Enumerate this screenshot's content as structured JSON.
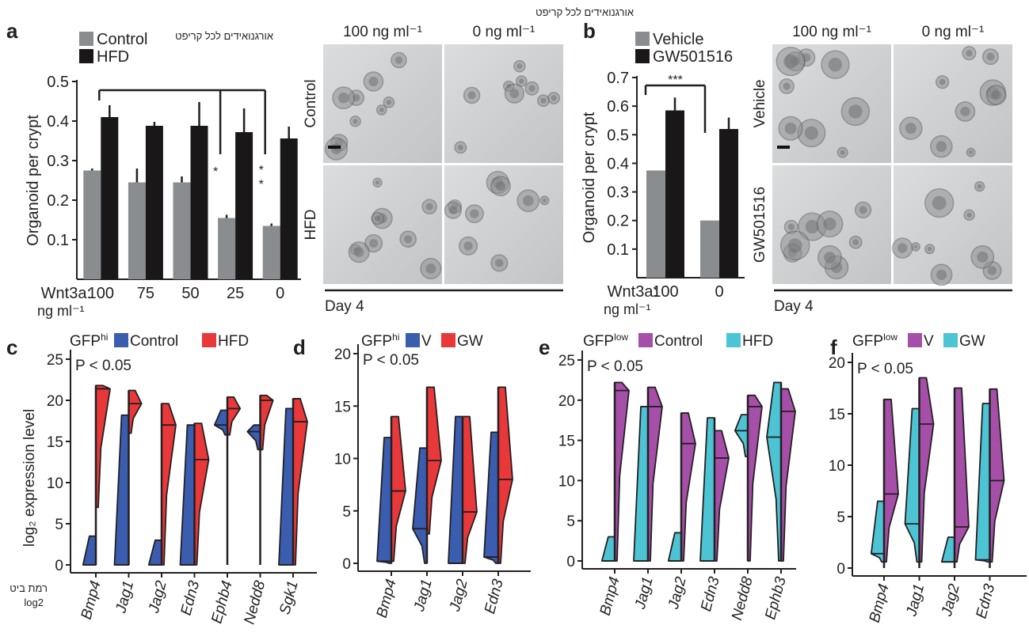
{
  "figure": {
    "annotation_hebrew_top_a": "אורגנואידים לכל קריפט",
    "annotation_hebrew_top_b": "אורגנואידים לכל קריפט",
    "annotation_hebrew_c_line1": "רמת ביט",
    "annotation_hebrew_c_line2": "log2"
  },
  "panels": {
    "a": {
      "letter": "a"
    },
    "b": {
      "letter": "b"
    },
    "c": {
      "letter": "c"
    },
    "d": {
      "letter": "d"
    },
    "e": {
      "letter": "e"
    },
    "f": {
      "letter": "f"
    }
  },
  "micrographs": {
    "a": {
      "col_labels": [
        "100 ng ml⁻¹",
        "0 ng ml⁻¹"
      ],
      "row_labels": [
        "Control",
        "HFD"
      ],
      "footer": "Day 4"
    },
    "b": {
      "col_labels": [
        "100 ng ml⁻¹",
        "0 ng ml⁻¹"
      ],
      "row_labels": [
        "Vehicle",
        "GW501516"
      ],
      "footer": "Day 4"
    }
  },
  "colors": {
    "control_gray": "#8a8d90",
    "hfd_black": "#1a1718",
    "blue": "#3a5db0",
    "red": "#e8383a",
    "purple": "#a64fa8",
    "cyan": "#4cc4d4"
  },
  "chart_data": [
    {
      "id": "a",
      "type": "bar",
      "ylabel": "Organoid per crypt",
      "xlabel_prefix": "Wnt3a:",
      "xlabel_unit": "ng ml⁻¹",
      "categories": [
        "100",
        "75",
        "50",
        "25",
        "0"
      ],
      "ylim": [
        0,
        0.5
      ],
      "yticks": [
        "0.1",
        "0.2",
        "0.3",
        "0.4",
        "0.5"
      ],
      "legend": [
        "Control",
        "HFD"
      ],
      "series": [
        {
          "name": "Control",
          "values": [
            0.275,
            0.245,
            0.245,
            0.155,
            0.135
          ],
          "errors": [
            0.005,
            0.035,
            0.015,
            0.008,
            0.006
          ]
        },
        {
          "name": "HFD",
          "values": [
            0.41,
            0.388,
            0.388,
            0.372,
            0.356
          ],
          "errors": [
            0.03,
            0.01,
            0.06,
            0.06,
            0.03
          ]
        }
      ],
      "significance": [
        {
          "from": "100",
          "to": "25",
          "label": "*"
        },
        {
          "from": "100",
          "to": "0",
          "label": "**"
        }
      ]
    },
    {
      "id": "b",
      "type": "bar",
      "ylabel": "Organoid per crypt",
      "xlabel_prefix": "Wnt3a:",
      "xlabel_unit": "ng ml⁻¹",
      "categories": [
        "100",
        "0"
      ],
      "ylim": [
        0,
        0.7
      ],
      "yticks": [
        "0.1",
        "0.2",
        "0.3",
        "0.4",
        "0.5",
        "0.6",
        "0.7"
      ],
      "legend": [
        "Vehicle",
        "GW501516"
      ],
      "series": [
        {
          "name": "Vehicle",
          "values": [
            0.375,
            0.2
          ],
          "errors": [
            0,
            0
          ]
        },
        {
          "name": "GW501516",
          "values": [
            0.585,
            0.52
          ],
          "errors": [
            0.045,
            0.04
          ]
        }
      ],
      "significance": [
        {
          "from": "100",
          "to": "0",
          "label": "***"
        }
      ]
    },
    {
      "id": "c",
      "type": "violin",
      "group_label": "GFP",
      "group_sup": "hi",
      "ylabel": "log₂ expression level",
      "pvalue": "P < 0.05",
      "ylim": [
        0,
        25
      ],
      "yticks": [
        "0",
        "5",
        "10",
        "15",
        "20",
        "25"
      ],
      "legend": [
        "Control",
        "HFD"
      ],
      "categories": [
        "Bmp4",
        "Jag1",
        "Jag2",
        "Edn3",
        "Ephb4",
        "Nedd8",
        "Sgk1"
      ],
      "series": [
        {
          "name": "Control",
          "min": [
            0,
            0,
            0,
            0,
            15.8,
            14,
            0
          ],
          "max": [
            3.5,
            18.2,
            3,
            17,
            18.8,
            17,
            19
          ],
          "median": [
            0,
            0,
            0,
            0,
            17,
            16.2,
            0
          ]
        },
        {
          "name": "HFD",
          "min": [
            7,
            16,
            0,
            0,
            15.8,
            14,
            0
          ],
          "max": [
            21.8,
            21.2,
            19.6,
            17.2,
            20.4,
            20.6,
            20.2
          ],
          "median": [
            21.4,
            19.6,
            17,
            12.8,
            19,
            20,
            17.4
          ]
        }
      ]
    },
    {
      "id": "d",
      "type": "violin",
      "group_label": "GFP",
      "group_sup": "hi",
      "pvalue": "P < 0.05",
      "ylim": [
        0,
        20
      ],
      "yticks": [
        "0",
        "5",
        "10",
        "15",
        "20"
      ],
      "legend": [
        "V",
        "GW"
      ],
      "categories": [
        "Bmp4",
        "Jag1",
        "Jag2",
        "Edn3"
      ],
      "series": [
        {
          "name": "V",
          "min": [
            0,
            0,
            0,
            0
          ],
          "max": [
            12,
            11,
            14,
            12.5
          ],
          "median": [
            0.2,
            3.3,
            0,
            0.6
          ]
        },
        {
          "name": "GW",
          "min": [
            0.2,
            2.8,
            0,
            0
          ],
          "max": [
            14,
            16.8,
            14,
            16.8
          ],
          "median": [
            6.9,
            9.8,
            4.9,
            8
          ]
        }
      ]
    },
    {
      "id": "e",
      "type": "violin",
      "group_label": "GFP",
      "group_sup": "low",
      "pvalue": "P < 0.05",
      "ylim": [
        0,
        25
      ],
      "yticks": [
        "0",
        "5",
        "10",
        "15",
        "20",
        "25"
      ],
      "legend": [
        "Control",
        "HFD"
      ],
      "categories": [
        "Bmp4",
        "Jag1",
        "Jag2",
        "Edn3",
        "Nedd8",
        "Ephb3"
      ],
      "series": [
        {
          "name": "Control",
          "min": [
            0,
            0,
            0,
            0,
            0,
            0
          ],
          "max": [
            22.2,
            21.6,
            18.4,
            16.2,
            20.6,
            21.4
          ],
          "median": [
            21.2,
            19.2,
            14.6,
            12.8,
            19.2,
            18.6
          ]
        },
        {
          "name": "HFD",
          "min": [
            0,
            0,
            0,
            0,
            13,
            0
          ],
          "max": [
            3,
            19.2,
            3.5,
            17.8,
            18.2,
            22.2
          ],
          "median": [
            0,
            0,
            0,
            0,
            16.2,
            15.4
          ]
        }
      ]
    },
    {
      "id": "f",
      "type": "violin",
      "group_label": "GFP",
      "group_sup": "low",
      "pvalue": "P < 0.05",
      "ylim": [
        0,
        20
      ],
      "yticks": [
        "0",
        "5",
        "10",
        "15",
        "20"
      ],
      "legend": [
        "V",
        "GW"
      ],
      "categories": [
        "Bmp4",
        "Jag1",
        "Jag2",
        "Edn3"
      ],
      "series": [
        {
          "name": "V",
          "min": [
            0.6,
            0.6,
            0.6,
            0.6
          ],
          "max": [
            16.4,
            18.5,
            17.5,
            17.4
          ],
          "median": [
            7.2,
            14,
            4,
            8.5
          ]
        },
        {
          "name": "GW",
          "min": [
            0.6,
            0.6,
            0.6,
            0.6
          ],
          "max": [
            6.5,
            15.5,
            3,
            16
          ],
          "median": [
            1.4,
            4.3,
            0.6,
            0.8
          ]
        }
      ]
    }
  ]
}
